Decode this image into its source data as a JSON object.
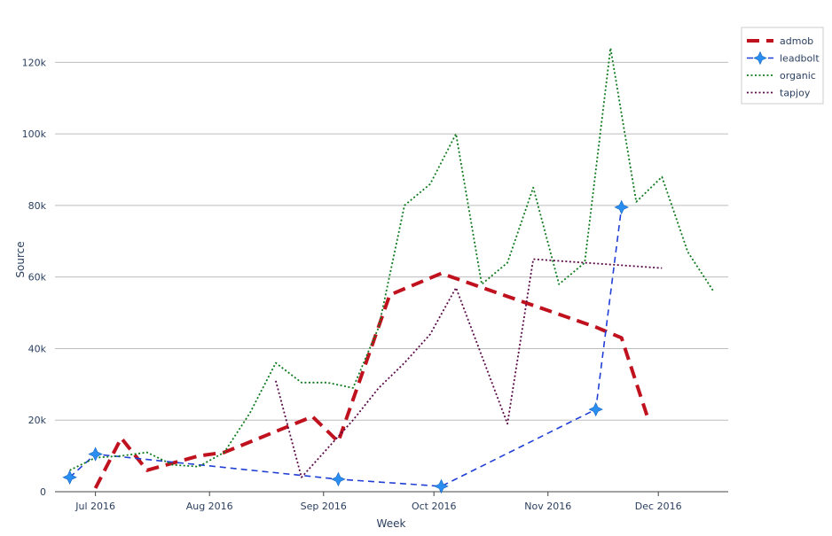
{
  "chart_data": {
    "type": "line",
    "title": "",
    "xlabel": "Week",
    "ylabel": "Source",
    "x_ticks": [
      {
        "label": "Jul 2016",
        "x": "2016-07-01"
      },
      {
        "label": "Aug 2016",
        "x": "2016-08-01"
      },
      {
        "label": "Sep 2016",
        "x": "2016-09-01"
      },
      {
        "label": "Oct 2016",
        "x": "2016-10-01"
      },
      {
        "label": "Nov 2016",
        "x": "2016-11-01"
      },
      {
        "label": "Dec 2016",
        "x": "2016-12-01"
      }
    ],
    "y_ticks": [
      {
        "label": "0",
        "y": 0
      },
      {
        "label": "20k",
        "y": 20000
      },
      {
        "label": "40k",
        "y": 40000
      },
      {
        "label": "60k",
        "y": 60000
      },
      {
        "label": "80k",
        "y": 80000
      },
      {
        "label": "100k",
        "y": 100000
      },
      {
        "label": "120k",
        "y": 120000
      }
    ],
    "xlim": [
      "2016-06-20",
      "2016-12-20"
    ],
    "ylim": [
      0,
      129000
    ],
    "grid": "horizontal",
    "legend_position": "top-right",
    "series": [
      {
        "name": "admob",
        "color": "#c0121e",
        "style": "dashed-thick",
        "markers": false,
        "points": [
          [
            "2016-07-01",
            1000
          ],
          [
            "2016-07-08",
            15000
          ],
          [
            "2016-07-15",
            6000
          ],
          [
            "2016-07-22",
            8000
          ],
          [
            "2016-07-29",
            10000
          ],
          [
            "2016-08-05",
            11000
          ],
          [
            "2016-08-29",
            21000
          ],
          [
            "2016-09-05",
            14000
          ],
          [
            "2016-09-19",
            55000
          ],
          [
            "2016-10-03",
            61000
          ],
          [
            "2016-11-14",
            46000
          ],
          [
            "2016-11-21",
            43000
          ],
          [
            "2016-11-28",
            21000
          ]
        ]
      },
      {
        "name": "leadbolt",
        "color": "#1f3fd6",
        "marker_color": "#2a8df0",
        "style": "dashed",
        "markers": true,
        "points": [
          [
            "2016-06-24",
            4000
          ],
          [
            "2016-07-01",
            10500
          ],
          [
            "2016-09-05",
            3500
          ],
          [
            "2016-10-03",
            1500
          ],
          [
            "2016-11-14",
            23000
          ],
          [
            "2016-11-21",
            79500
          ]
        ]
      },
      {
        "name": "organic",
        "color": "#0f7a1e",
        "style": "dotted",
        "markers": false,
        "points": [
          [
            "2016-06-24",
            6000
          ],
          [
            "2016-07-01",
            9500
          ],
          [
            "2016-07-08",
            10000
          ],
          [
            "2016-07-15",
            11000
          ],
          [
            "2016-07-22",
            7500
          ],
          [
            "2016-07-29",
            7000
          ],
          [
            "2016-08-05",
            11000
          ],
          [
            "2016-08-12",
            22000
          ],
          [
            "2016-08-19",
            36000
          ],
          [
            "2016-08-26",
            30500
          ],
          [
            "2016-09-02",
            30500
          ],
          [
            "2016-09-09",
            29000
          ],
          [
            "2016-09-16",
            46000
          ],
          [
            "2016-09-23",
            80000
          ],
          [
            "2016-09-30",
            86000
          ],
          [
            "2016-10-07",
            100000
          ],
          [
            "2016-10-14",
            58000
          ],
          [
            "2016-10-21",
            64000
          ],
          [
            "2016-10-28",
            85000
          ],
          [
            "2016-11-04",
            58000
          ],
          [
            "2016-11-11",
            64000
          ],
          [
            "2016-11-18",
            124000
          ],
          [
            "2016-11-25",
            81000
          ],
          [
            "2016-12-02",
            88000
          ],
          [
            "2016-12-09",
            67000
          ],
          [
            "2016-12-16",
            56000
          ]
        ]
      },
      {
        "name": "tapjoy",
        "color": "#5a0a48",
        "style": "dotted",
        "markers": false,
        "points": [
          [
            "2016-08-19",
            31000
          ],
          [
            "2016-08-26",
            4000
          ],
          [
            "2016-09-02",
            12000
          ],
          [
            "2016-09-09",
            20000
          ],
          [
            "2016-09-16",
            29000
          ],
          [
            "2016-09-23",
            36000
          ],
          [
            "2016-09-30",
            44000
          ],
          [
            "2016-10-07",
            57000
          ],
          [
            "2016-10-14",
            38000
          ],
          [
            "2016-10-21",
            19000
          ],
          [
            "2016-10-28",
            65000
          ],
          [
            "2016-12-02",
            62500
          ]
        ]
      }
    ]
  }
}
